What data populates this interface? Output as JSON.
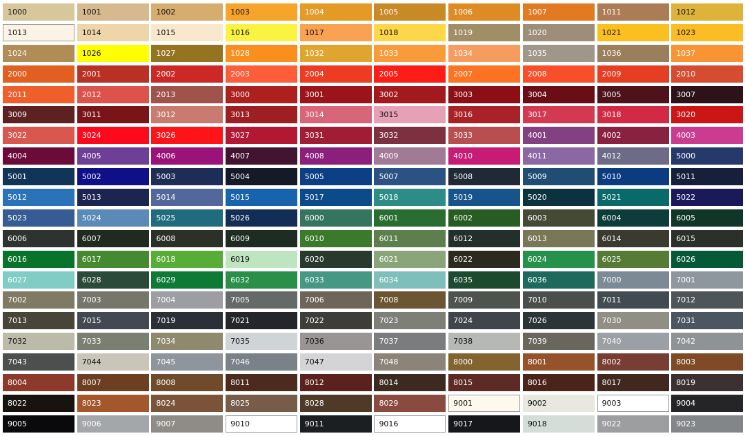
{
  "swatches": [
    [
      "1000",
      "#d6c89a"
    ],
    [
      "1001",
      "#d6b98e"
    ],
    [
      "1002",
      "#d6ad6e"
    ],
    [
      "1003",
      "#f7a42a"
    ],
    [
      "1004",
      "#e49a24"
    ],
    [
      "1005",
      "#c88a24"
    ],
    [
      "1006",
      "#df8b24"
    ],
    [
      "1007",
      "#e27a22"
    ],
    [
      "1011",
      "#ab7c55"
    ],
    [
      "1012",
      "#ddb33a"
    ],
    [
      "1013",
      "#fbf4e6"
    ],
    [
      "1014",
      "#eed6aa"
    ],
    [
      "1015",
      "#f8e8cd"
    ],
    [
      "1016",
      "#fbf341"
    ],
    [
      "1017",
      "#f9a252"
    ],
    [
      "1018",
      "#fdd64a"
    ],
    [
      "1019",
      "#9f8e66"
    ],
    [
      "1020",
      "#9e8d78"
    ],
    [
      "1021",
      "#fbbf1f"
    ],
    [
      "1023",
      "#fbbd24"
    ],
    [
      "1024",
      "#b08d56"
    ],
    [
      "1026",
      "#ffff00"
    ],
    [
      "1027",
      "#957421"
    ],
    [
      "1028",
      "#fb8f1e"
    ],
    [
      "1032",
      "#e0a52e"
    ],
    [
      "1033",
      "#f99b3b"
    ],
    [
      "1034",
      "#f69c5f"
    ],
    [
      "1035",
      "#a0978b"
    ],
    [
      "1036",
      "#9a7f5c"
    ],
    [
      "1037",
      "#f99434"
    ],
    [
      "2000",
      "#e05f21"
    ],
    [
      "2001",
      "#b93124"
    ],
    [
      "2002",
      "#cc2825"
    ],
    [
      "2003",
      "#fd5d39"
    ],
    [
      "2004",
      "#ee3c22"
    ],
    [
      "2005",
      "#fe1d16"
    ],
    [
      "2007",
      "#fd7323"
    ],
    [
      "2008",
      "#f84f2a"
    ],
    [
      "2009",
      "#e53e22"
    ],
    [
      "2010",
      "#d64c30"
    ],
    [
      "2011",
      "#ef5f2c"
    ],
    [
      "2012",
      "#dd524a"
    ],
    [
      "2013",
      "#a0534b"
    ],
    [
      "3000",
      "#ac201e"
    ],
    [
      "3001",
      "#9a1419"
    ],
    [
      "3002",
      "#a21a1d"
    ],
    [
      "3003",
      "#8c0f15"
    ],
    [
      "3004",
      "#6a0d15"
    ],
    [
      "3005",
      "#4d121a"
    ],
    [
      "3007",
      "#2d121a"
    ],
    [
      "3009",
      "#5d2122"
    ],
    [
      "3011",
      "#791519"
    ],
    [
      "3012",
      "#c87b6e"
    ],
    [
      "3013",
      "#9d1f22"
    ],
    [
      "3014",
      "#d86578"
    ],
    [
      "3015",
      "#e6a1b7"
    ],
    [
      "3016",
      "#a92228"
    ],
    [
      "3017",
      "#d33a52"
    ],
    [
      "3018",
      "#d22a44"
    ],
    [
      "3020",
      "#cc1616"
    ],
    [
      "3022",
      "#d9574f"
    ],
    [
      "3024",
      "#ff0a1d"
    ],
    [
      "3026",
      "#ff141a"
    ],
    [
      "3027",
      "#b21733"
    ],
    [
      "3031",
      "#a11d33"
    ],
    [
      "3032",
      "#7d303f"
    ],
    [
      "3033",
      "#b84e4f"
    ],
    [
      "4001",
      "#834182"
    ],
    [
      "4002",
      "#892140"
    ],
    [
      "4003",
      "#cb3b8f"
    ],
    [
      "4004",
      "#6b0b3a"
    ],
    [
      "4005",
      "#6e3f96"
    ],
    [
      "4006",
      "#9b1278"
    ],
    [
      "4007",
      "#431431"
    ],
    [
      "4008",
      "#8b1f7c"
    ],
    [
      "4009",
      "#a17a96"
    ],
    [
      "4010",
      "#c81b73"
    ],
    [
      "4011",
      "#8a68a4"
    ],
    [
      "4012",
      "#6e6b88"
    ],
    [
      "5000",
      "#25396b"
    ],
    [
      "5001",
      "#113558"
    ],
    [
      "5002",
      "#0f0f88"
    ],
    [
      "5003",
      "#1e2d57"
    ],
    [
      "5004",
      "#141a28"
    ],
    [
      "5005",
      "#0c3f83"
    ],
    [
      "5007",
      "#2a5282"
    ],
    [
      "5008",
      "#1f2a36"
    ],
    [
      "5009",
      "#1f4d73"
    ],
    [
      "5010",
      "#0b3c80"
    ],
    [
      "5011",
      "#17203a"
    ],
    [
      "5012",
      "#2b73b8"
    ],
    [
      "5013",
      "#1b2550"
    ],
    [
      "5014",
      "#52679a"
    ],
    [
      "5015",
      "#1864ac"
    ],
    [
      "5017",
      "#0c4b8a"
    ],
    [
      "5018",
      "#2e8c86"
    ],
    [
      "5019",
      "#17548c"
    ],
    [
      "5020",
      "#0c3240"
    ],
    [
      "5021",
      "#0a6a6a"
    ],
    [
      "5022",
      "#1a1a5a"
    ],
    [
      "5023",
      "#355d93"
    ],
    [
      "5024",
      "#5b8ab8"
    ],
    [
      "5025",
      "#216b7f"
    ],
    [
      "5026",
      "#132e56"
    ],
    [
      "6000",
      "#357560"
    ],
    [
      "6001",
      "#2a6d30"
    ],
    [
      "6002",
      "#275c23"
    ],
    [
      "6003",
      "#434a35"
    ],
    [
      "6004",
      "#0c3d3b"
    ],
    [
      "6005",
      "#103628"
    ],
    [
      "6006",
      "#2f3330"
    ],
    [
      "6007",
      "#212a1e"
    ],
    [
      "6008",
      "#2c3128"
    ],
    [
      "6009",
      "#1d2d22"
    ],
    [
      "6010",
      "#3b7a2b"
    ],
    [
      "6011",
      "#5c7f4d"
    ],
    [
      "6012",
      "#222f2b"
    ],
    [
      "6013",
      "#787758"
    ],
    [
      "6014",
      "#3a3a2e"
    ],
    [
      "6015",
      "#2c302a"
    ],
    [
      "6016",
      "#08742b"
    ],
    [
      "6017",
      "#458930"
    ],
    [
      "6018",
      "#57ad35"
    ],
    [
      "6019",
      "#bfe4c0"
    ],
    [
      "6020",
      "#273a2d"
    ],
    [
      "6021",
      "#8aa579"
    ],
    [
      "6022",
      "#2b2a1e"
    ],
    [
      "6024",
      "#26914b"
    ],
    [
      "6025",
      "#557b35"
    ],
    [
      "6026",
      "#065936"
    ],
    [
      "6027",
      "#7fcdc4"
    ],
    [
      "6028",
      "#2b4a3a"
    ],
    [
      "6029",
      "#0d7a35"
    ],
    [
      "6032",
      "#2a8f49"
    ],
    [
      "6033",
      "#449884"
    ],
    [
      "6034",
      "#7fbfbb"
    ],
    [
      "6035",
      "#1c4a2e"
    ],
    [
      "6036",
      "#1d6a5c"
    ],
    [
      "7000",
      "#7b8a95"
    ],
    [
      "7001",
      "#8e979e"
    ],
    [
      "7002",
      "#7e7a63"
    ],
    [
      "7003",
      "#76766a"
    ],
    [
      "7004",
      "#9d9ea3"
    ],
    [
      "7005",
      "#646a68"
    ],
    [
      "7006",
      "#6e6558"
    ],
    [
      "7008",
      "#6c5533"
    ],
    [
      "7009",
      "#4d544d"
    ],
    [
      "7010",
      "#4a4f4b"
    ],
    [
      "7011",
      "#434b52"
    ],
    [
      "7012",
      "#4e5559"
    ],
    [
      "7013",
      "#484437"
    ],
    [
      "7015",
      "#434852"
    ],
    [
      "7019",
      "#2a2f38"
    ],
    [
      "7021",
      "#23272b"
    ],
    [
      "7022",
      "#3e3d37"
    ],
    [
      "7023",
      "#7e7f77"
    ],
    [
      "7024",
      "#40444d"
    ],
    [
      "7026",
      "#2b3437"
    ],
    [
      "7030",
      "#918e86"
    ],
    [
      "7031",
      "#4c5661"
    ],
    [
      "7032",
      "#bcbba9"
    ],
    [
      "7033",
      "#7a8071"
    ],
    [
      "7034",
      "#8f8a6e"
    ],
    [
      "7035",
      "#cfd4d6"
    ],
    [
      "7036",
      "#9a9595"
    ],
    [
      "7037",
      "#7a7c7e"
    ],
    [
      "7038",
      "#b6b8b4"
    ],
    [
      "7039",
      "#6a665e"
    ],
    [
      "7040",
      "#9aa0a6"
    ],
    [
      "7042",
      "#8e9395"
    ],
    [
      "7043",
      "#4b4f4e"
    ],
    [
      "7044",
      "#c9c6b9"
    ],
    [
      "7045",
      "#8f959c"
    ],
    [
      "7046",
      "#7a8188"
    ],
    [
      "7047",
      "#d4d3d6"
    ],
    [
      "7048",
      "#8c8478"
    ],
    [
      "8000",
      "#83642f"
    ],
    [
      "8001",
      "#96532b"
    ],
    [
      "8002",
      "#783e33"
    ],
    [
      "8003",
      "#7e4b26"
    ],
    [
      "8004",
      "#8d3a2c"
    ],
    [
      "8007",
      "#6c3f23"
    ],
    [
      "8008",
      "#6f4a2b"
    ],
    [
      "8011",
      "#4c2a1e"
    ],
    [
      "8012",
      "#5b211e"
    ],
    [
      "8014",
      "#3c2a20"
    ],
    [
      "8015",
      "#5e2a25"
    ],
    [
      "8016",
      "#4a2418"
    ],
    [
      "8017",
      "#40281f"
    ],
    [
      "8019",
      "#3b3133"
    ],
    [
      "8022",
      "#18130f"
    ],
    [
      "8023",
      "#a5572c"
    ],
    [
      "8024",
      "#7a5338"
    ],
    [
      "8025",
      "#765c49"
    ],
    [
      "8028",
      "#4f3a28"
    ],
    [
      "8029",
      "#8a4a3f"
    ],
    [
      "9001",
      "#fdf9ee"
    ],
    [
      "9002",
      "#e8e8e0"
    ],
    [
      "9003",
      "#ffffff"
    ],
    [
      "9004",
      "#252528"
    ],
    [
      "9005",
      "#0a0a0d"
    ],
    [
      "9006",
      "#a4a7aa"
    ],
    [
      "9007",
      "#8f8b86"
    ],
    [
      "9010",
      "#ffffff"
    ],
    [
      "9011",
      "#1c1f22"
    ],
    [
      "9016",
      "#ffffff"
    ],
    [
      "9017",
      "#16171a"
    ],
    [
      "9018",
      "#d4ddd8"
    ],
    [
      "9022",
      "#9c9ea0"
    ],
    [
      "9023",
      "#838688"
    ]
  ],
  "dark_text_codes": [
    "1000",
    "1001",
    "1002",
    "1003",
    "1012",
    "1013",
    "1014",
    "1015",
    "1016",
    "1017",
    "1018",
    "1021",
    "1023",
    "1026",
    "3015",
    "6019",
    "7032",
    "7035",
    "7036",
    "7038",
    "7044",
    "7047",
    "9001",
    "9002",
    "9003",
    "9010",
    "9016",
    "9018"
  ],
  "bordered_codes": [
    "1013",
    "9001",
    "9003",
    "9010",
    "9016"
  ]
}
